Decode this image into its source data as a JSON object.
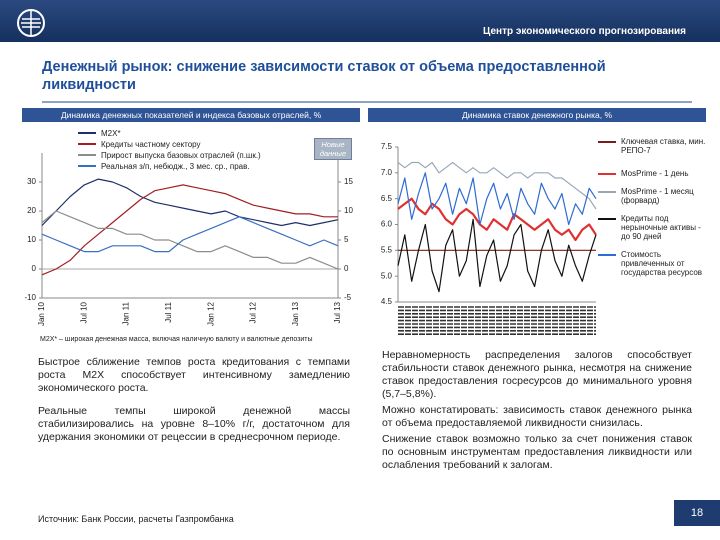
{
  "header": {
    "org": "Центр экономического прогнозирования"
  },
  "title": "Денежный рынок: снижение зависимости ставок от объема предоставленной ликвидности",
  "chart_data": [
    {
      "type": "line",
      "title": "Динамика денежных показателей и индекса базовых отраслей, %",
      "categories": [
        "Jan 10",
        null,
        null,
        "Jul 10",
        null,
        null,
        "Jan 11",
        null,
        null,
        "Jul 11",
        null,
        null,
        "Jan 12",
        null,
        null,
        "Jul 12",
        null,
        null,
        "Jan 13",
        null,
        null,
        "Jul 13"
      ],
      "series": [
        {
          "name": "M2X*",
          "color": "#1f2f6b",
          "values": [
            15,
            20,
            25,
            29,
            31,
            30,
            28,
            25,
            23,
            22,
            21,
            20,
            19,
            20,
            18,
            17,
            16,
            15,
            16,
            15,
            16,
            17
          ]
        },
        {
          "name": "Кредиты частному сектору",
          "color": "#a31e22",
          "values": [
            -2,
            0,
            3,
            8,
            12,
            16,
            20,
            24,
            27,
            28,
            29,
            28,
            27,
            26,
            24,
            22,
            21,
            20,
            19,
            19,
            18,
            18
          ]
        },
        {
          "name": "Прирост выпуска базовых отраслей (п.шк.)",
          "color": "#8c8c8c",
          "axis": "y2",
          "values": [
            8,
            10,
            9,
            8,
            7,
            7,
            6,
            6,
            5,
            5,
            4,
            3,
            3,
            4,
            3,
            2,
            2,
            1,
            1,
            2,
            1,
            0
          ]
        },
        {
          "name": "Реальная з/п, небюдж., 3 мес. ср., прав.",
          "color": "#3b6fc4",
          "axis": "y2",
          "values": [
            6,
            5,
            4,
            3,
            3,
            4,
            4,
            4,
            3,
            3,
            5,
            6,
            7,
            8,
            9,
            8,
            7,
            6,
            5,
            4,
            5,
            4
          ]
        }
      ],
      "ylim": [
        -10,
        40
      ],
      "yticks": [
        -10,
        0,
        10,
        20,
        30
      ],
      "y2lim": [
        -5,
        20
      ],
      "y2ticks": [
        -5,
        0,
        5,
        10,
        15
      ],
      "legend": "top-left",
      "annotation": "Новые данные",
      "footnote": "M2X* – широкая денежная масса, включая наличную валюту и валютные депозиты"
    },
    {
      "type": "line",
      "title": "Динамика ставок денежного рынка, %",
      "categories": [
        null,
        null,
        null,
        null,
        null,
        null,
        null,
        null,
        null,
        null,
        null,
        null,
        null,
        null,
        null,
        null,
        null,
        null,
        null,
        null,
        null,
        null,
        null,
        null,
        null,
        null,
        null,
        null,
        null,
        null
      ],
      "series": [
        {
          "name": "Ключевая ставка, мин. РЕПО-7",
          "color": "#7b1c1c",
          "values": [
            5.5,
            5.5,
            5.5,
            5.5,
            5.5,
            5.5,
            5.5,
            5.5,
            5.5,
            5.5,
            5.5,
            5.5,
            5.5,
            5.5,
            5.5,
            5.5,
            5.5,
            5.5,
            5.5,
            5.5,
            5.5,
            5.5,
            5.5,
            5.5,
            5.5,
            5.5,
            5.5,
            5.5,
            5.5,
            5.5
          ]
        },
        {
          "name": "MosPrime - 1 день",
          "color": "#e03030",
          "values": [
            6.3,
            6.4,
            6.5,
            6.3,
            6.2,
            6.4,
            6.3,
            6.1,
            6.0,
            6.2,
            6.3,
            6.2,
            6.0,
            5.9,
            6.1,
            6.0,
            5.9,
            6.2,
            6.1,
            6.0,
            5.9,
            6.0,
            6.1,
            5.9,
            5.8,
            5.9,
            5.7,
            5.9,
            6.0,
            5.8
          ]
        },
        {
          "name": "MosPrime - 1 месяц (форвард)",
          "color": "#9aa7b8",
          "values": [
            7.2,
            7.1,
            7.2,
            7.2,
            7.1,
            7.2,
            7.0,
            7.1,
            7.2,
            7.1,
            7.0,
            7.1,
            7.0,
            7.0,
            7.1,
            7.0,
            6.9,
            7.0,
            7.0,
            6.9,
            7.0,
            7.0,
            7.0,
            6.9,
            6.9,
            6.8,
            6.7,
            6.6,
            6.5,
            6.3
          ]
        },
        {
          "name": "Кредиты под нерыночные активы - до 90 дней",
          "color": "#111111",
          "values": [
            5.2,
            5.8,
            4.9,
            5.5,
            6.0,
            5.1,
            4.7,
            5.6,
            5.9,
            5.0,
            5.3,
            6.1,
            4.8,
            5.4,
            5.7,
            4.9,
            5.2,
            5.8,
            6.0,
            5.1,
            4.8,
            5.5,
            5.9,
            5.3,
            5.0,
            5.6,
            5.2,
            4.9,
            5.4,
            5.8
          ]
        },
        {
          "name": "Стоимость привлеченных от государства ресурсов",
          "color": "#2e6bd6",
          "values": [
            6.4,
            6.9,
            6.1,
            6.6,
            7.0,
            6.3,
            6.5,
            6.8,
            6.2,
            6.7,
            6.4,
            6.9,
            6.0,
            6.5,
            6.8,
            6.3,
            6.6,
            6.1,
            6.7,
            6.4,
            6.2,
            6.8,
            6.5,
            6.3,
            6.6,
            6.0,
            6.4,
            6.2,
            6.7,
            6.5
          ]
        }
      ],
      "ylim": [
        4.5,
        7.5
      ],
      "yticks": [
        4.5,
        {
          "value": 5,
          "label": "5.0"
        },
        5.5,
        {
          "value": 6,
          "label": "6.0"
        },
        6.5,
        {
          "value": 7,
          "label": "7.0"
        },
        7.5
      ],
      "legend": "right"
    }
  ],
  "left_text": [
    "Быстрое сближение темпов роста кредитования с темпами роста M2X способствует интенсивному замедлению экономического роста.",
    "Реальные темпы широкой денежной массы стабилизировались на уровне 8–10% г/г, достаточном для удержания экономики от рецессии в среднесрочном периоде."
  ],
  "right_text": [
    "Неравномерность распределения залогов способствует стабильности ставок денежного рынка, несмотря на снижение ставок предоставления госресурсов до минимального уровня (5,7–5,8%).",
    "Можно констатировать: зависимость ставок денежного рынка от объема предоставляемой ликвидности снизилась.",
    "Снижение ставок возможно только за счет понижения ставок по основным инструментам предоставления ликвидности или ослабления требований к залогам."
  ],
  "source": "Источник: Банк России, расчеты Газпромбанка",
  "page_number": "18"
}
